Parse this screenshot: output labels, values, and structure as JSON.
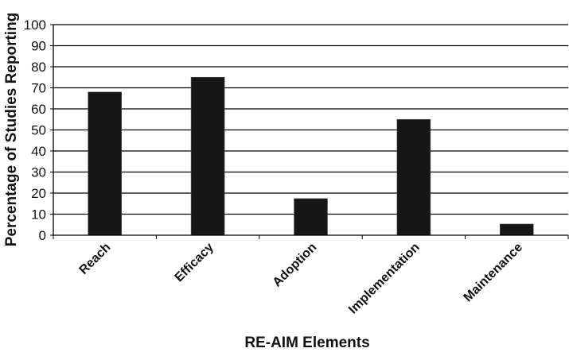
{
  "chart_data": {
    "type": "bar",
    "title": "",
    "xlabel": "RE-AIM Elements",
    "ylabel": "Percentage of Studies Reporting",
    "categories": [
      "Reach",
      "Efficacy",
      "Adoption",
      "Implementation",
      "Maintenance"
    ],
    "values": [
      68,
      75,
      17.4,
      55,
      5.3
    ],
    "ylim": [
      0,
      100
    ],
    "yticks": [
      0,
      10,
      20,
      30,
      40,
      50,
      60,
      70,
      80,
      90,
      100
    ],
    "grid": true,
    "legend": "none",
    "bar_color": "#161616"
  }
}
